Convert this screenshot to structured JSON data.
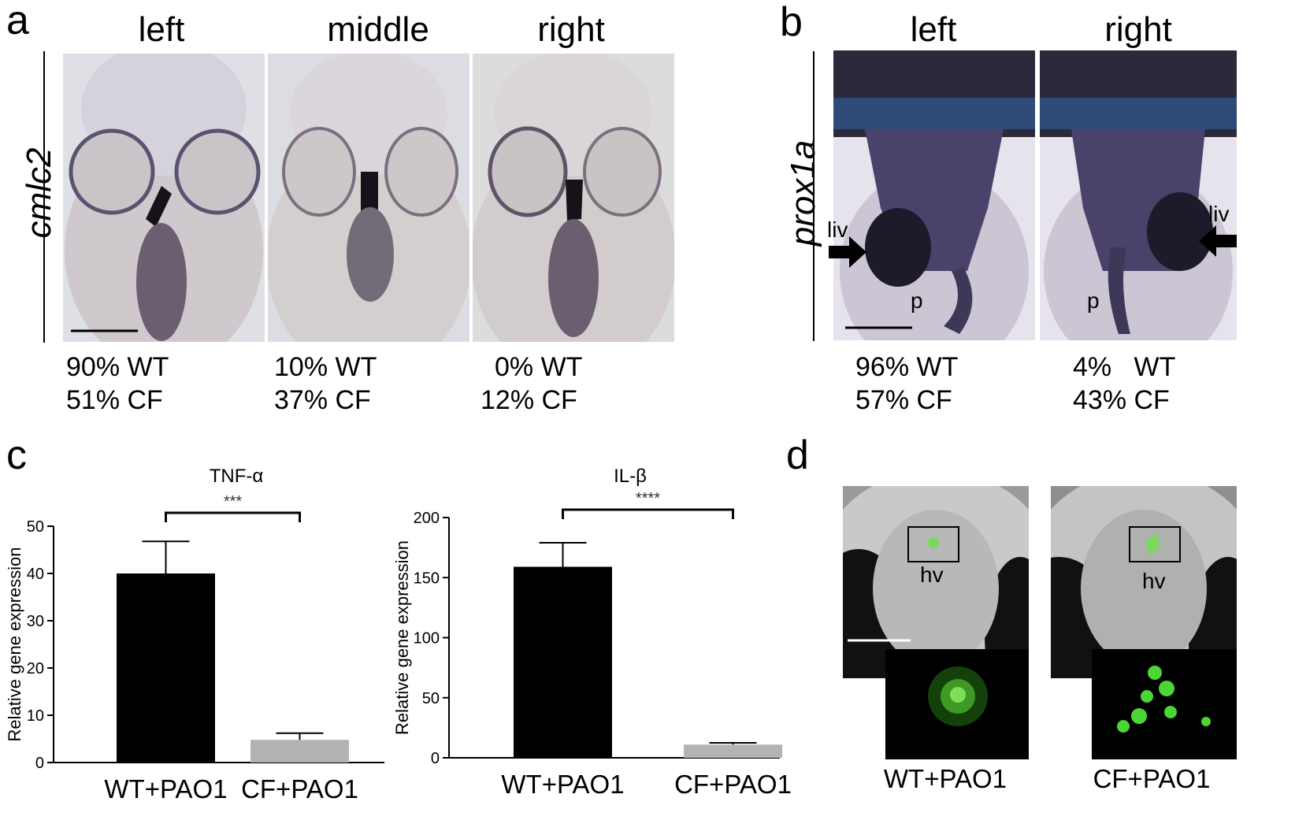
{
  "panel_a": {
    "letter": "a",
    "gene": "cmlc2",
    "columns": [
      {
        "label": "left",
        "wt": "90% WT",
        "cf": "51% CF"
      },
      {
        "label": "middle",
        "wt": "10% WT",
        "cf": "37% CF"
      },
      {
        "label": "right",
        "wt": "0% WT",
        "cf": "12% CF"
      }
    ]
  },
  "panel_b": {
    "letter": "b",
    "gene": "prox1a",
    "liver_label": "liv",
    "pancreas_label": "p",
    "columns": [
      {
        "label": "left",
        "wt": "96% WT",
        "cf": "57% CF"
      },
      {
        "label": "right",
        "wt": "4%   WT",
        "cf": "43% CF"
      }
    ]
  },
  "panel_c": {
    "letter": "c"
  },
  "panel_d": {
    "letter": "d",
    "region_label": "hv",
    "captions": [
      "WT+PAO1",
      "CF+PAO1"
    ]
  },
  "chart_data": [
    {
      "type": "bar",
      "title": "TNF-α",
      "ylabel": "Relative gene expression",
      "categories": [
        "WT+PAO1",
        "CF+PAO1"
      ],
      "values": [
        40,
        4.8
      ],
      "error": [
        6.8,
        1.4
      ],
      "ylim": [
        0,
        50
      ],
      "yticks": [
        0,
        10,
        20,
        30,
        40,
        50
      ],
      "significance": "***",
      "colors": [
        "#000000",
        "#b3b3b3"
      ]
    },
    {
      "type": "bar",
      "title": "IL-β",
      "ylabel": "Relative gene expression",
      "categories": [
        "WT+PAO1",
        "CF+PAO1"
      ],
      "values": [
        159,
        11
      ],
      "error": [
        20,
        1.5
      ],
      "ylim": [
        0,
        200
      ],
      "yticks": [
        0,
        50,
        100,
        150,
        200
      ],
      "significance": "****",
      "colors": [
        "#000000",
        "#b3b3b3"
      ]
    }
  ]
}
